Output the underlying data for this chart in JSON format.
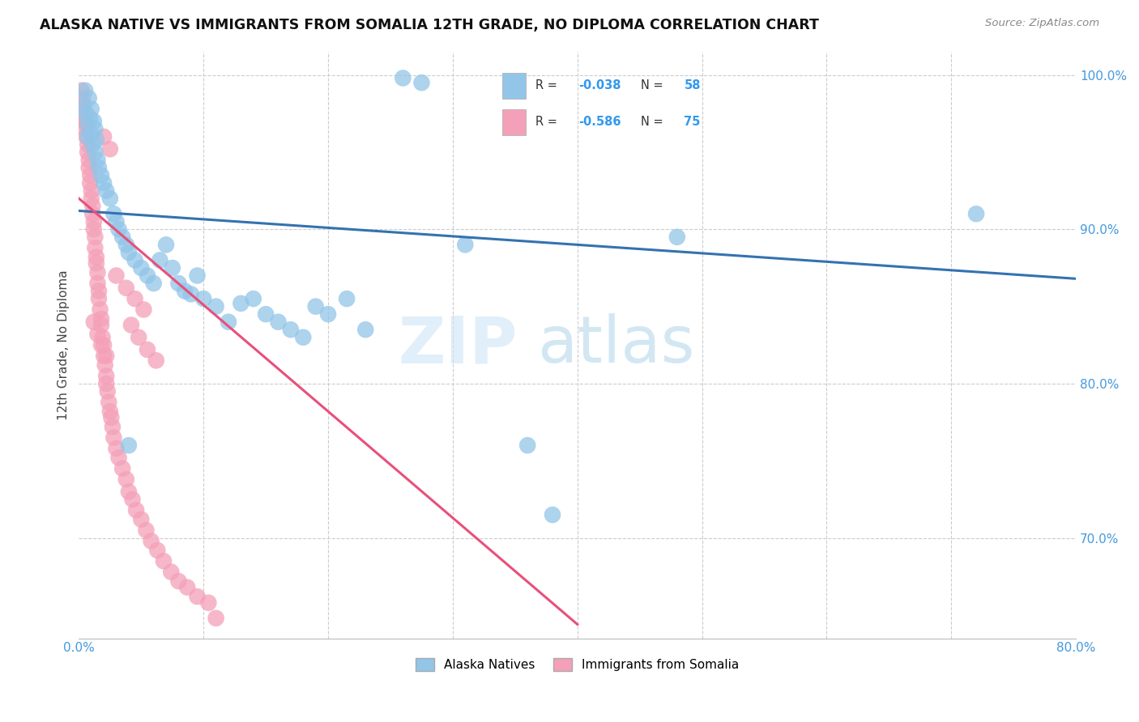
{
  "title": "ALASKA NATIVE VS IMMIGRANTS FROM SOMALIA 12TH GRADE, NO DIPLOMA CORRELATION CHART",
  "source": "Source: ZipAtlas.com",
  "ylabel": "12th Grade, No Diploma",
  "xlim": [
    0.0,
    0.8
  ],
  "ylim": [
    0.635,
    1.015
  ],
  "blue_color": "#92C5E8",
  "pink_color": "#F4A0B8",
  "blue_line_color": "#3472B0",
  "pink_line_color": "#E8507A",
  "blue_scatter": [
    [
      0.003,
      0.98
    ],
    [
      0.005,
      0.99
    ],
    [
      0.006,
      0.975
    ],
    [
      0.007,
      0.968
    ],
    [
      0.007,
      0.96
    ],
    [
      0.008,
      0.985
    ],
    [
      0.009,
      0.972
    ],
    [
      0.01,
      0.978
    ],
    [
      0.01,
      0.962
    ],
    [
      0.011,
      0.955
    ],
    [
      0.012,
      0.97
    ],
    [
      0.013,
      0.965
    ],
    [
      0.013,
      0.95
    ],
    [
      0.014,
      0.958
    ],
    [
      0.015,
      0.945
    ],
    [
      0.016,
      0.94
    ],
    [
      0.018,
      0.935
    ],
    [
      0.02,
      0.93
    ],
    [
      0.022,
      0.925
    ],
    [
      0.025,
      0.92
    ],
    [
      0.028,
      0.91
    ],
    [
      0.03,
      0.905
    ],
    [
      0.032,
      0.9
    ],
    [
      0.035,
      0.895
    ],
    [
      0.038,
      0.89
    ],
    [
      0.04,
      0.885
    ],
    [
      0.045,
      0.88
    ],
    [
      0.05,
      0.875
    ],
    [
      0.055,
      0.87
    ],
    [
      0.06,
      0.865
    ],
    [
      0.065,
      0.88
    ],
    [
      0.07,
      0.89
    ],
    [
      0.075,
      0.875
    ],
    [
      0.08,
      0.865
    ],
    [
      0.085,
      0.86
    ],
    [
      0.09,
      0.858
    ],
    [
      0.095,
      0.87
    ],
    [
      0.1,
      0.855
    ],
    [
      0.11,
      0.85
    ],
    [
      0.12,
      0.84
    ],
    [
      0.13,
      0.852
    ],
    [
      0.14,
      0.855
    ],
    [
      0.15,
      0.845
    ],
    [
      0.16,
      0.84
    ],
    [
      0.17,
      0.835
    ],
    [
      0.18,
      0.83
    ],
    [
      0.19,
      0.85
    ],
    [
      0.2,
      0.845
    ],
    [
      0.215,
      0.855
    ],
    [
      0.23,
      0.835
    ],
    [
      0.26,
      0.998
    ],
    [
      0.275,
      0.995
    ],
    [
      0.31,
      0.89
    ],
    [
      0.36,
      0.76
    ],
    [
      0.38,
      0.715
    ],
    [
      0.48,
      0.895
    ],
    [
      0.72,
      0.91
    ],
    [
      0.04,
      0.76
    ]
  ],
  "pink_scatter": [
    [
      0.002,
      0.99
    ],
    [
      0.003,
      0.985
    ],
    [
      0.004,
      0.98
    ],
    [
      0.004,
      0.975
    ],
    [
      0.005,
      0.97
    ],
    [
      0.005,
      0.965
    ],
    [
      0.006,
      0.968
    ],
    [
      0.006,
      0.96
    ],
    [
      0.007,
      0.955
    ],
    [
      0.007,
      0.95
    ],
    [
      0.008,
      0.945
    ],
    [
      0.008,
      0.94
    ],
    [
      0.009,
      0.935
    ],
    [
      0.009,
      0.93
    ],
    [
      0.01,
      0.925
    ],
    [
      0.01,
      0.92
    ],
    [
      0.011,
      0.915
    ],
    [
      0.011,
      0.91
    ],
    [
      0.012,
      0.905
    ],
    [
      0.012,
      0.9
    ],
    [
      0.013,
      0.895
    ],
    [
      0.013,
      0.888
    ],
    [
      0.014,
      0.882
    ],
    [
      0.014,
      0.878
    ],
    [
      0.015,
      0.872
    ],
    [
      0.015,
      0.865
    ],
    [
      0.016,
      0.86
    ],
    [
      0.016,
      0.855
    ],
    [
      0.017,
      0.848
    ],
    [
      0.018,
      0.842
    ],
    [
      0.018,
      0.838
    ],
    [
      0.019,
      0.83
    ],
    [
      0.02,
      0.825
    ],
    [
      0.02,
      0.818
    ],
    [
      0.021,
      0.812
    ],
    [
      0.022,
      0.805
    ],
    [
      0.022,
      0.8
    ],
    [
      0.023,
      0.795
    ],
    [
      0.024,
      0.788
    ],
    [
      0.025,
      0.782
    ],
    [
      0.026,
      0.778
    ],
    [
      0.027,
      0.772
    ],
    [
      0.028,
      0.765
    ],
    [
      0.03,
      0.758
    ],
    [
      0.032,
      0.752
    ],
    [
      0.035,
      0.745
    ],
    [
      0.038,
      0.738
    ],
    [
      0.04,
      0.73
    ],
    [
      0.043,
      0.725
    ],
    [
      0.046,
      0.718
    ],
    [
      0.05,
      0.712
    ],
    [
      0.054,
      0.705
    ],
    [
      0.058,
      0.698
    ],
    [
      0.063,
      0.692
    ],
    [
      0.068,
      0.685
    ],
    [
      0.074,
      0.678
    ],
    [
      0.08,
      0.672
    ],
    [
      0.087,
      0.668
    ],
    [
      0.095,
      0.662
    ],
    [
      0.104,
      0.658
    ],
    [
      0.042,
      0.838
    ],
    [
      0.048,
      0.83
    ],
    [
      0.055,
      0.822
    ],
    [
      0.062,
      0.815
    ],
    [
      0.012,
      0.84
    ],
    [
      0.015,
      0.832
    ],
    [
      0.018,
      0.825
    ],
    [
      0.022,
      0.818
    ],
    [
      0.03,
      0.87
    ],
    [
      0.038,
      0.862
    ],
    [
      0.045,
      0.855
    ],
    [
      0.052,
      0.848
    ],
    [
      0.02,
      0.96
    ],
    [
      0.025,
      0.952
    ],
    [
      0.11,
      0.648
    ]
  ],
  "watermark_zip": "ZIP",
  "watermark_atlas": "atlas",
  "legend_label_blue_bottom": "Alaska Natives",
  "legend_label_pink_bottom": "Immigrants from Somalia",
  "blue_R_str": "-0.038",
  "blue_N_str": "58",
  "pink_R_str": "-0.586",
  "pink_N_str": "75"
}
